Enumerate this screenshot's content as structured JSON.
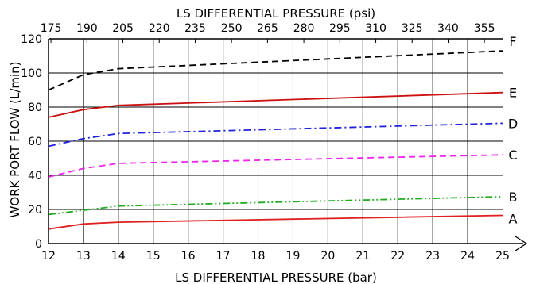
{
  "chart_data": {
    "type": "line",
    "xlabel": "LS DIFFERENTIAL PRESSURE (bar)",
    "x2label": "LS DIFFERENTIAL PRESSURE (psi)",
    "ylabel": "WORK PORT FLOW (L/min)",
    "xlim": [
      12,
      25
    ],
    "ylim": [
      0,
      120
    ],
    "x_ticks": [
      "12",
      "13",
      "14",
      "15",
      "16",
      "17",
      "18",
      "19",
      "20",
      "21",
      "22",
      "23",
      "24",
      "25"
    ],
    "y_ticks": [
      "0",
      "20",
      "40",
      "60",
      "80",
      "100",
      "120"
    ],
    "x2_ticks": [
      {
        "label": "175",
        "x": 12.07
      },
      {
        "label": "190",
        "x": 13.1
      },
      {
        "label": "205",
        "x": 14.13
      },
      {
        "label": "220",
        "x": 15.17
      },
      {
        "label": "235",
        "x": 16.2
      },
      {
        "label": "250",
        "x": 17.24
      },
      {
        "label": "265",
        "x": 18.27
      },
      {
        "label": "280",
        "x": 19.31
      },
      {
        "label": "295",
        "x": 20.34
      },
      {
        "label": "310",
        "x": 21.37
      },
      {
        "label": "325",
        "x": 22.41
      },
      {
        "label": "340",
        "x": 23.44
      },
      {
        "label": "355",
        "x": 24.48
      }
    ],
    "grid": true,
    "series": [
      {
        "name": "A",
        "color": "#e02020",
        "dash": "solid",
        "x": [
          12,
          13,
          14,
          25
        ],
        "y": [
          8.5,
          11.5,
          12.5,
          16.5
        ]
      },
      {
        "name": "B",
        "color": "#22aa22",
        "dash": "dashdotdot",
        "x": [
          12,
          13,
          14,
          25
        ],
        "y": [
          17,
          19.5,
          22,
          27.5
        ]
      },
      {
        "name": "C",
        "color": "#ee22ee",
        "dash": "dashed",
        "x": [
          12,
          13,
          14,
          25
        ],
        "y": [
          39,
          44,
          47,
          52
        ]
      },
      {
        "name": "D",
        "color": "#2222dd",
        "dash": "dashdot",
        "x": [
          12,
          13,
          14,
          25
        ],
        "y": [
          57,
          61.5,
          64.5,
          70.5
        ]
      },
      {
        "name": "E",
        "color": "#cc1111",
        "dash": "solid",
        "x": [
          12,
          13,
          14,
          25
        ],
        "y": [
          74,
          78.5,
          81,
          88.5
        ]
      },
      {
        "name": "F",
        "color": "#000000",
        "dash": "dashed",
        "x": [
          12,
          13,
          14,
          25
        ],
        "y": [
          90,
          99,
          102.5,
          113
        ]
      }
    ]
  }
}
